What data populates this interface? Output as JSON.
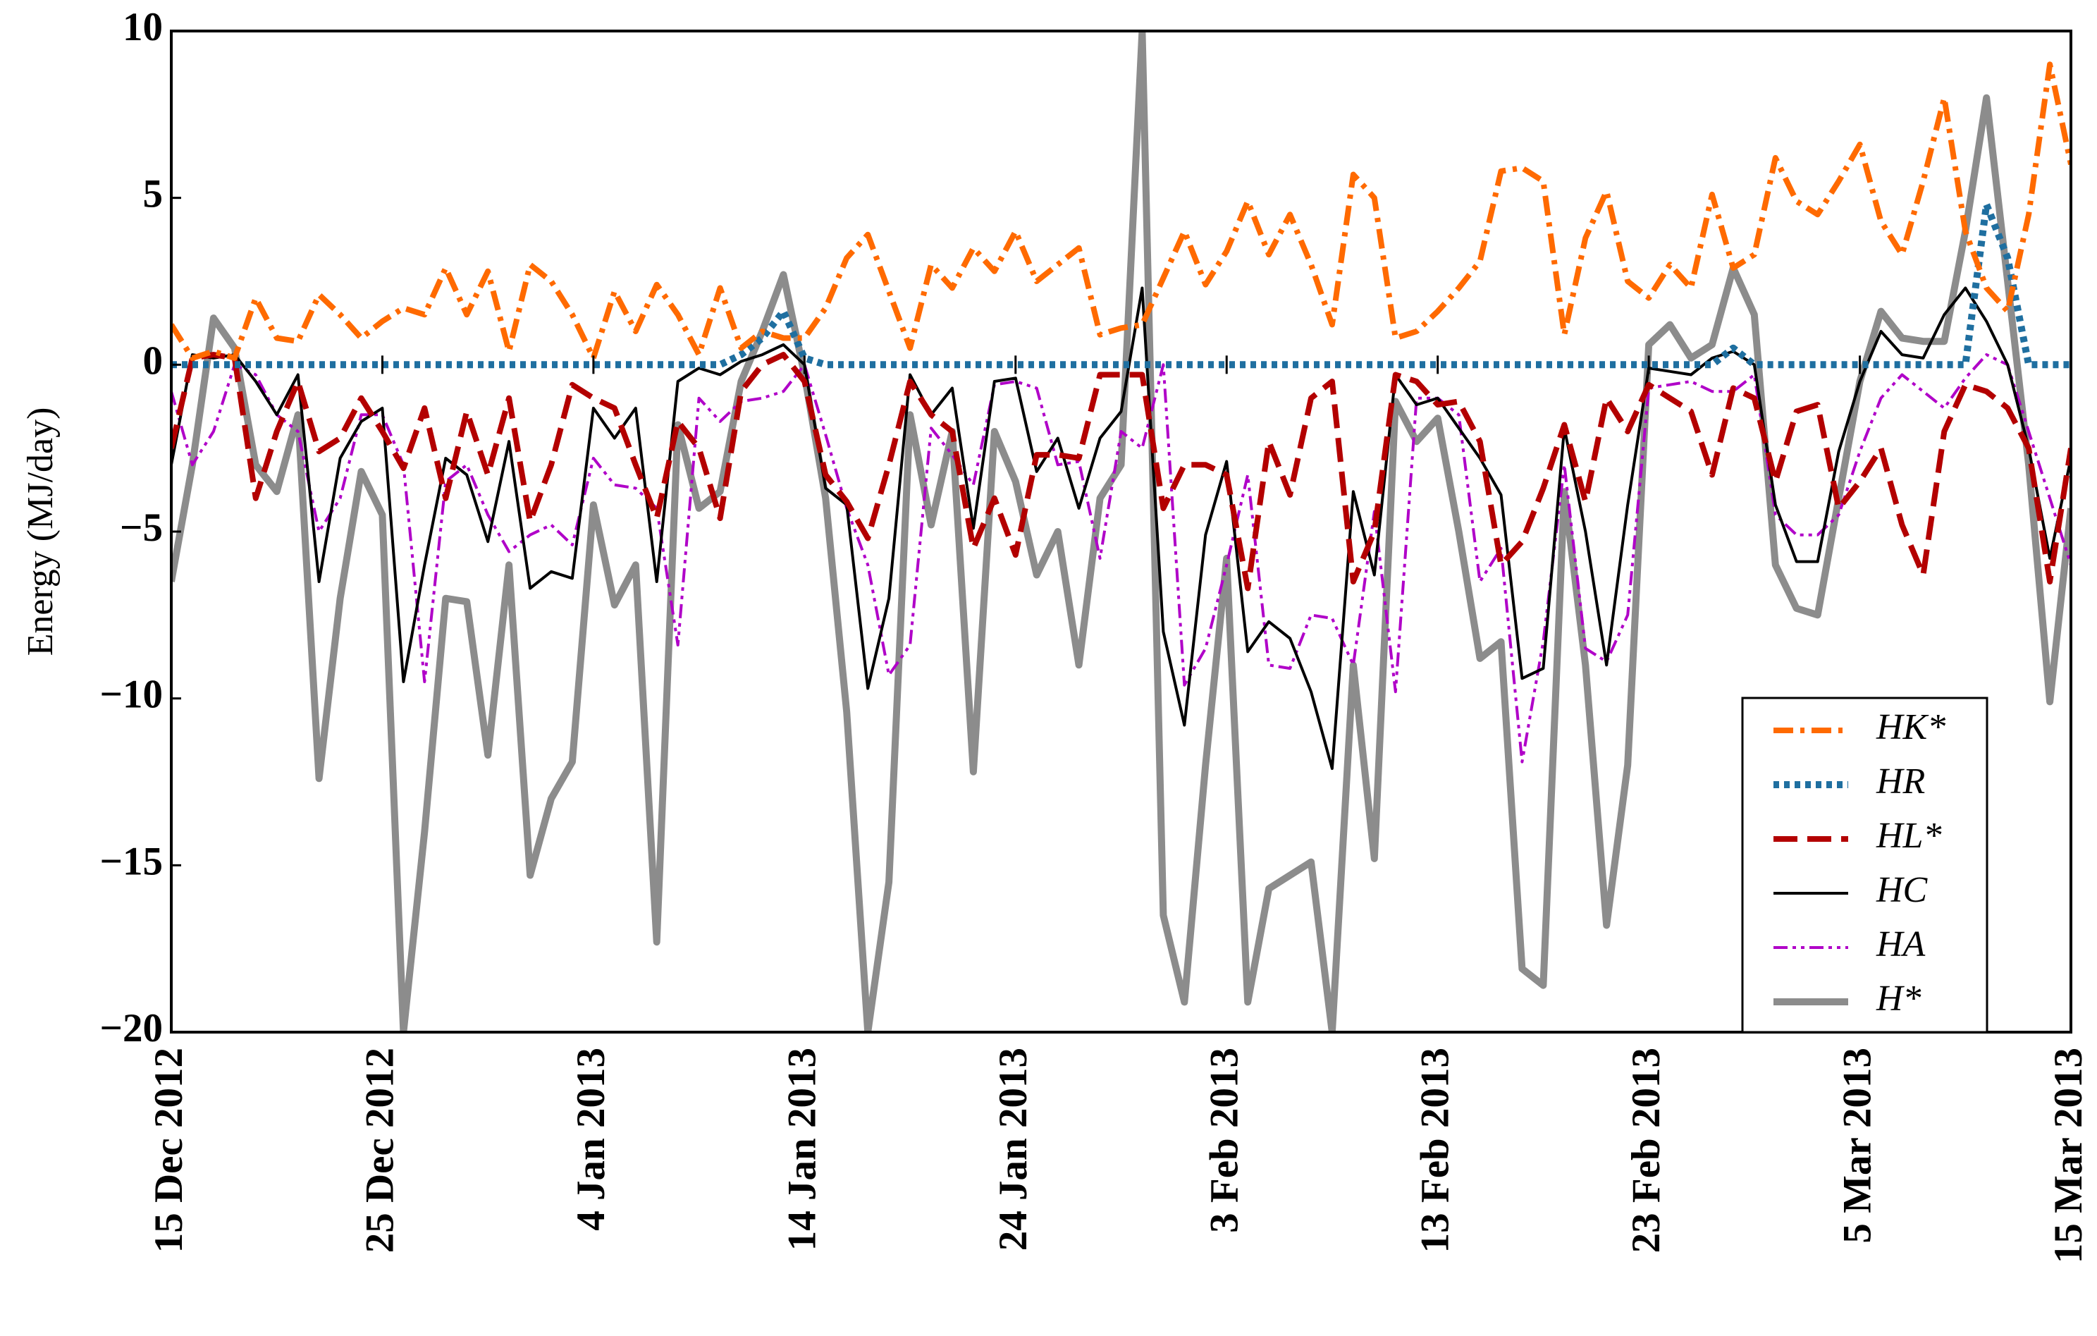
{
  "chart_data": {
    "type": "line",
    "ylabel": "Energy (MJ/day)",
    "x": [
      "2012-12-15",
      "2012-12-16",
      "2012-12-17",
      "2012-12-18",
      "2012-12-19",
      "2012-12-20",
      "2012-12-21",
      "2012-12-22",
      "2012-12-23",
      "2012-12-24",
      "2012-12-25",
      "2012-12-26",
      "2012-12-27",
      "2012-12-28",
      "2012-12-29",
      "2012-12-30",
      "2012-12-31",
      "2013-01-01",
      "2013-01-02",
      "2013-01-03",
      "2013-01-04",
      "2013-01-05",
      "2013-01-06",
      "2013-01-07",
      "2013-01-08",
      "2013-01-09",
      "2013-01-10",
      "2013-01-11",
      "2013-01-12",
      "2013-01-13",
      "2013-01-14",
      "2013-01-15",
      "2013-01-16",
      "2013-01-17",
      "2013-01-18",
      "2013-01-19",
      "2013-01-20",
      "2013-01-21",
      "2013-01-22",
      "2013-01-23",
      "2013-01-24",
      "2013-01-25",
      "2013-01-26",
      "2013-01-27",
      "2013-01-28",
      "2013-01-29",
      "2013-01-30",
      "2013-01-31",
      "2013-02-01",
      "2013-02-02",
      "2013-02-03",
      "2013-02-04",
      "2013-02-05",
      "2013-02-06",
      "2013-02-07",
      "2013-02-08",
      "2013-02-09",
      "2013-02-10",
      "2013-02-11",
      "2013-02-12",
      "2013-02-13",
      "2013-02-14",
      "2013-02-15",
      "2013-02-16",
      "2013-02-17",
      "2013-02-18",
      "2013-02-19",
      "2013-02-20",
      "2013-02-21",
      "2013-02-22",
      "2013-02-23",
      "2013-02-24",
      "2013-02-25",
      "2013-02-26",
      "2013-02-27",
      "2013-02-28",
      "2013-03-01",
      "2013-03-02",
      "2013-03-03",
      "2013-03-04",
      "2013-03-05",
      "2013-03-06",
      "2013-03-07",
      "2013-03-08",
      "2013-03-09",
      "2013-03-10",
      "2013-03-11",
      "2013-03-12",
      "2013-03-13",
      "2013-03-14",
      "2013-03-15"
    ],
    "series": [
      {
        "name": "HK*",
        "color": "#ff6a00",
        "linestyle": "dashdot",
        "values": [
          1.2,
          0.2,
          0.4,
          0.2,
          2,
          0.8,
          0.7,
          2.1,
          1.5,
          0.8,
          1.3,
          1.7,
          1.5,
          2.9,
          1.5,
          2.8,
          0.4,
          3,
          2.5,
          1.5,
          0.2,
          2.2,
          1,
          2.4,
          1.5,
          0.3,
          2.3,
          0.5,
          1,
          0.8,
          0.8,
          1.7,
          3.2,
          3.9,
          2.2,
          0.5,
          3,
          2.3,
          3.5,
          2.8,
          4,
          2.5,
          3,
          3.5,
          0.9,
          1.1,
          1.2,
          2.6,
          4,
          2.4,
          3.4,
          4.9,
          3.3,
          4.5,
          3,
          1.2,
          5.7,
          5,
          0.8,
          1,
          1.6,
          2.3,
          3.1,
          5.8,
          5.9,
          5.5,
          0.9,
          3.8,
          5.2,
          2.5,
          2,
          3,
          2.3,
          5.1,
          2.9,
          3.3,
          6.2,
          4.9,
          4.5,
          5.5,
          6.6,
          4.3,
          3.3,
          5.5,
          8,
          4,
          2.3,
          1.6,
          4.5,
          9,
          6
        ]
      },
      {
        "name": "HR",
        "color": "#1f6fa0",
        "linestyle": "dotted",
        "values": [
          0,
          0,
          0,
          0,
          0,
          0,
          0,
          0,
          0,
          0,
          0,
          0,
          0,
          0,
          0,
          0,
          0,
          0,
          0,
          0,
          0,
          0,
          0,
          0,
          0,
          0,
          0,
          0.3,
          0.8,
          1.6,
          0.2,
          0,
          0,
          0,
          0,
          0,
          0,
          0,
          0,
          0,
          0,
          0,
          0,
          0,
          0,
          0,
          0,
          0,
          0,
          0,
          0,
          0,
          0,
          0,
          0,
          0,
          0,
          0,
          0,
          0,
          0,
          0,
          0,
          0,
          0,
          0,
          0,
          0,
          0,
          0,
          0,
          0,
          0,
          0,
          0.5,
          0,
          0,
          0,
          0,
          0,
          0,
          0,
          0,
          0,
          0,
          0,
          4.8,
          3.2,
          0,
          0,
          0
        ]
      },
      {
        "name": "HL*",
        "color": "#b30000",
        "linestyle": "dashed",
        "values": [
          -2.5,
          0.2,
          0.3,
          0.2,
          -4,
          -2,
          -0.5,
          -2.6,
          -2.2,
          -1,
          -2,
          -3.1,
          -1.3,
          -4,
          -1.4,
          -3.3,
          -1,
          -4.7,
          -3,
          -0.6,
          -1,
          -1.3,
          -3,
          -4.6,
          -1.7,
          -2.5,
          -4.6,
          -0.8,
          0,
          0.3,
          -0.5,
          -3.3,
          -4.1,
          -5.2,
          -3,
          -0.5,
          -1.5,
          -2,
          -5.5,
          -4,
          -5.7,
          -2.7,
          -2.7,
          -2.8,
          -0.3,
          -0.3,
          -0.3,
          -4.3,
          -3,
          -3,
          -3.3,
          -6.7,
          -2.3,
          -3.9,
          -1,
          -0.5,
          -6.5,
          -5,
          -0.3,
          -0.5,
          -1.2,
          -1.1,
          -2.3,
          -6,
          -5.3,
          -3.7,
          -1.8,
          -4.1,
          -1,
          -2,
          -0.6,
          -1,
          -1.4,
          -3.3,
          -0.7,
          -1,
          -3.5,
          -1.4,
          -1.2,
          -4.3,
          -3.5,
          -2.5,
          -4.8,
          -6.3,
          -2,
          -0.6,
          -0.8,
          -1.3,
          -2.5,
          -6.5,
          -2.5
        ]
      },
      {
        "name": "HC",
        "color": "#000000",
        "linestyle": "solid",
        "values": [
          -3,
          0.3,
          0.2,
          0.3,
          -0.5,
          -1.5,
          -0.3,
          -6.5,
          -2.8,
          -1.7,
          -1.3,
          -9.5,
          -6,
          -2.8,
          -3.3,
          -5.3,
          -2.3,
          -6.7,
          -6.2,
          -6.4,
          -1.3,
          -2.2,
          -1.3,
          -6.5,
          -0.5,
          -0.1,
          -0.3,
          0.1,
          0.3,
          0.6,
          0,
          -3.7,
          -4.2,
          -9.7,
          -7,
          -0.3,
          -1.5,
          -0.7,
          -4.9,
          -0.5,
          -0.4,
          -3.2,
          -2.2,
          -4.3,
          -2.2,
          -1.4,
          2.3,
          -8,
          -10.8,
          -5.1,
          -2.9,
          -8.6,
          -7.7,
          -8.2,
          -9.8,
          -12.1,
          -3.8,
          -6.3,
          -0.3,
          -1.2,
          -1,
          -1.9,
          -2.8,
          -3.9,
          -9.4,
          -9.1,
          -1.9,
          -5,
          -9,
          -4.2,
          -0.1,
          -0.2,
          -0.3,
          0.2,
          0.4,
          0,
          -4.2,
          -5.9,
          -5.9,
          -2.6,
          -0.5,
          1,
          0.3,
          0.2,
          1.5,
          2.3,
          1.3,
          0,
          -2.5,
          -5.8,
          -2.8
        ]
      },
      {
        "name": "HA",
        "color": "#b000c8",
        "linestyle": "dashdotdot",
        "values": [
          -0.8,
          -3,
          -2,
          0,
          -0.3,
          -1.5,
          -2,
          -5,
          -4,
          -1.5,
          -1.5,
          -3,
          -9.5,
          -3.5,
          -3,
          -4.5,
          -5.6,
          -5.1,
          -4.8,
          -5.4,
          -2.8,
          -3.6,
          -3.7,
          -4.3,
          -8.4,
          -1,
          -1.7,
          -1.1,
          -1,
          -0.8,
          0,
          -2.1,
          -4.3,
          -6,
          -9.3,
          -8.4,
          -1.9,
          -2.7,
          -3.6,
          -0.6,
          -0.5,
          -0.7,
          -3,
          -2.9,
          -5.8,
          -2,
          -2.5,
          0,
          -9.6,
          -8.5,
          -6,
          -3.3,
          -9,
          -9.1,
          -7.5,
          -7.6,
          -9,
          -4.4,
          -9.8,
          -1,
          -1,
          -1.5,
          -6.5,
          -5.5,
          -11.9,
          -8.3,
          -3,
          -8.5,
          -8.9,
          -7.5,
          -0.7,
          -0.6,
          -0.5,
          -0.8,
          -0.8,
          -0.3,
          -4.5,
          -5.1,
          -5.1,
          -4.5,
          -2.6,
          -1,
          -0.3,
          -0.8,
          -1.3,
          -0.4,
          0.3,
          0,
          -2,
          -4,
          -6
        ]
      },
      {
        "name": "H*",
        "color": "#8c8c8c",
        "linestyle": "solid",
        "values": [
          -6.5,
          -3,
          1.4,
          0.5,
          -3,
          -3.8,
          -1.5,
          -12.4,
          -7,
          -3.2,
          -4.5,
          -20,
          -14,
          -7,
          -7.1,
          -11.7,
          -6,
          -15.3,
          -13,
          -11.9,
          -4.2,
          -7.2,
          -6,
          -17.3,
          -1.8,
          -4.3,
          -3.8,
          -0.5,
          1,
          2.7,
          -0.3,
          -4,
          -10.4,
          -20,
          -15.5,
          -1.5,
          -4.8,
          -2,
          -12.2,
          -2,
          -3.5,
          -6.3,
          -5,
          -9,
          -4,
          -3,
          10,
          -16.5,
          -19.1,
          -12,
          -5.8,
          -19.1,
          -15.7,
          -15.3,
          -14.9,
          -20,
          -9,
          -14.8,
          -1.1,
          -2.3,
          -1.6,
          -5,
          -8.8,
          -8.3,
          -18.1,
          -18.6,
          -3.8,
          -9,
          -16.8,
          -12,
          0.6,
          1.2,
          0.2,
          0.6,
          2.9,
          1.5,
          -6,
          -7.3,
          -7.5,
          -4,
          -0.5,
          1.6,
          0.8,
          0.7,
          0.7,
          4,
          8,
          2.5,
          -3,
          -10.1,
          -4.3
        ]
      }
    ],
    "xlim": [
      "2012-12-15",
      "2013-03-15"
    ],
    "xticks": [
      {
        "value": "2012-12-15",
        "label": "15 Dec 2012"
      },
      {
        "value": "2012-12-25",
        "label": "25 Dec 2012"
      },
      {
        "value": "2013-01-04",
        "label": "4 Jan 2013"
      },
      {
        "value": "2013-01-14",
        "label": "14 Jan 2013"
      },
      {
        "value": "2013-01-24",
        "label": "24 Jan 2013"
      },
      {
        "value": "2013-02-03",
        "label": "3 Feb 2013"
      },
      {
        "value": "2013-02-13",
        "label": "13 Feb 2013"
      },
      {
        "value": "2013-02-23",
        "label": "23 Feb 2013"
      },
      {
        "value": "2013-03-05",
        "label": "5 Mar 2013"
      },
      {
        "value": "2013-03-15",
        "label": "15 Mar 2013"
      }
    ],
    "ylim": [
      -20,
      10
    ],
    "yticks": [
      {
        "value": -20,
        "label": "−20"
      },
      {
        "value": -15,
        "label": "−15"
      },
      {
        "value": -10,
        "label": "−10"
      },
      {
        "value": -5,
        "label": "−5"
      },
      0,
      5,
      10
    ],
    "grid": false,
    "legend": "lower right"
  }
}
